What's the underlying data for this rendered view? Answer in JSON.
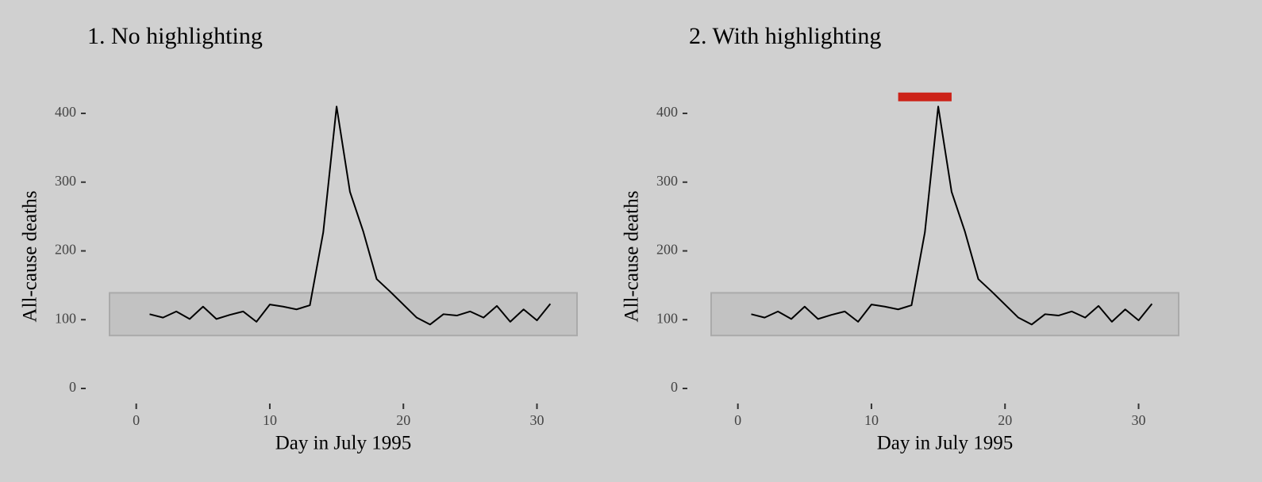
{
  "chart_data": [
    {
      "type": "line",
      "title": "1. No highlighting",
      "xlabel": "Day in July 1995",
      "ylabel": "All-cause deaths",
      "x": [
        1,
        2,
        3,
        4,
        5,
        6,
        7,
        8,
        9,
        10,
        11,
        12,
        13,
        14,
        15,
        16,
        17,
        18,
        19,
        20,
        21,
        22,
        23,
        24,
        25,
        26,
        27,
        28,
        29,
        30,
        31
      ],
      "series": [
        {
          "name": "All-cause deaths",
          "color": "#000000",
          "values": [
            108,
            103,
            112,
            101,
            119,
            101,
            107,
            112,
            97,
            122,
            119,
            115,
            121,
            227,
            410,
            286,
            228,
            159,
            141,
            122,
            103,
            93,
            108,
            106,
            112,
            103,
            120,
            97,
            115,
            99,
            123
          ]
        }
      ],
      "band": {
        "x": [
          -2,
          33
        ],
        "y": [
          77,
          139
        ],
        "color": "#c2c2c2"
      },
      "xlim": [
        -2,
        33
      ],
      "xticks": [
        0,
        10,
        20,
        30
      ],
      "ylim": [
        0,
        430
      ],
      "yticks": [
        0,
        100,
        200,
        300,
        400
      ]
    },
    {
      "type": "line",
      "title": "2. With highlighting",
      "xlabel": "Day in July 1995",
      "ylabel": "All-cause deaths",
      "x": [
        1,
        2,
        3,
        4,
        5,
        6,
        7,
        8,
        9,
        10,
        11,
        12,
        13,
        14,
        15,
        16,
        17,
        18,
        19,
        20,
        21,
        22,
        23,
        24,
        25,
        26,
        27,
        28,
        29,
        30,
        31
      ],
      "series": [
        {
          "name": "All-cause deaths",
          "color": "#000000",
          "values": [
            108,
            103,
            112,
            101,
            119,
            101,
            107,
            112,
            97,
            122,
            119,
            115,
            121,
            227,
            410,
            286,
            228,
            159,
            141,
            122,
            103,
            93,
            108,
            106,
            112,
            103,
            120,
            97,
            115,
            99,
            123
          ]
        }
      ],
      "band": {
        "x": [
          -2,
          33
        ],
        "y": [
          77,
          139
        ],
        "color": "#c2c2c2"
      },
      "highlight": {
        "x": [
          12,
          16
        ],
        "y": 424,
        "color": "#cc2218"
      },
      "xlim": [
        -2,
        33
      ],
      "xticks": [
        0,
        10,
        20,
        30
      ],
      "ylim": [
        0,
        430
      ],
      "yticks": [
        0,
        100,
        200,
        300,
        400
      ]
    }
  ]
}
